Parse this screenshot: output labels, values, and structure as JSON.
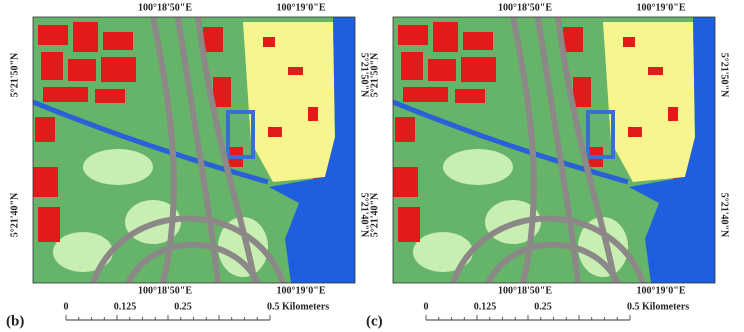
{
  "panels": [
    {
      "label": "(b)",
      "lon_labels": [
        "100°18'50\"E",
        "100°19'0\"E"
      ],
      "lat_labels": [
        "5°21'50\"N",
        "5°21'40\"N"
      ],
      "scale_labels": [
        "0",
        "0.125",
        "0.25",
        "0.5 Kilometers"
      ]
    },
    {
      "label": "(c)",
      "lon_labels": [
        "100°18'50\"E",
        "100°19'0\"E"
      ],
      "lat_labels": [
        "5°21'50\"N",
        "5°21'40\"N"
      ],
      "scale_labels": [
        "0",
        "0.125",
        "0.25",
        "0.5 Kilometers"
      ]
    }
  ]
}
